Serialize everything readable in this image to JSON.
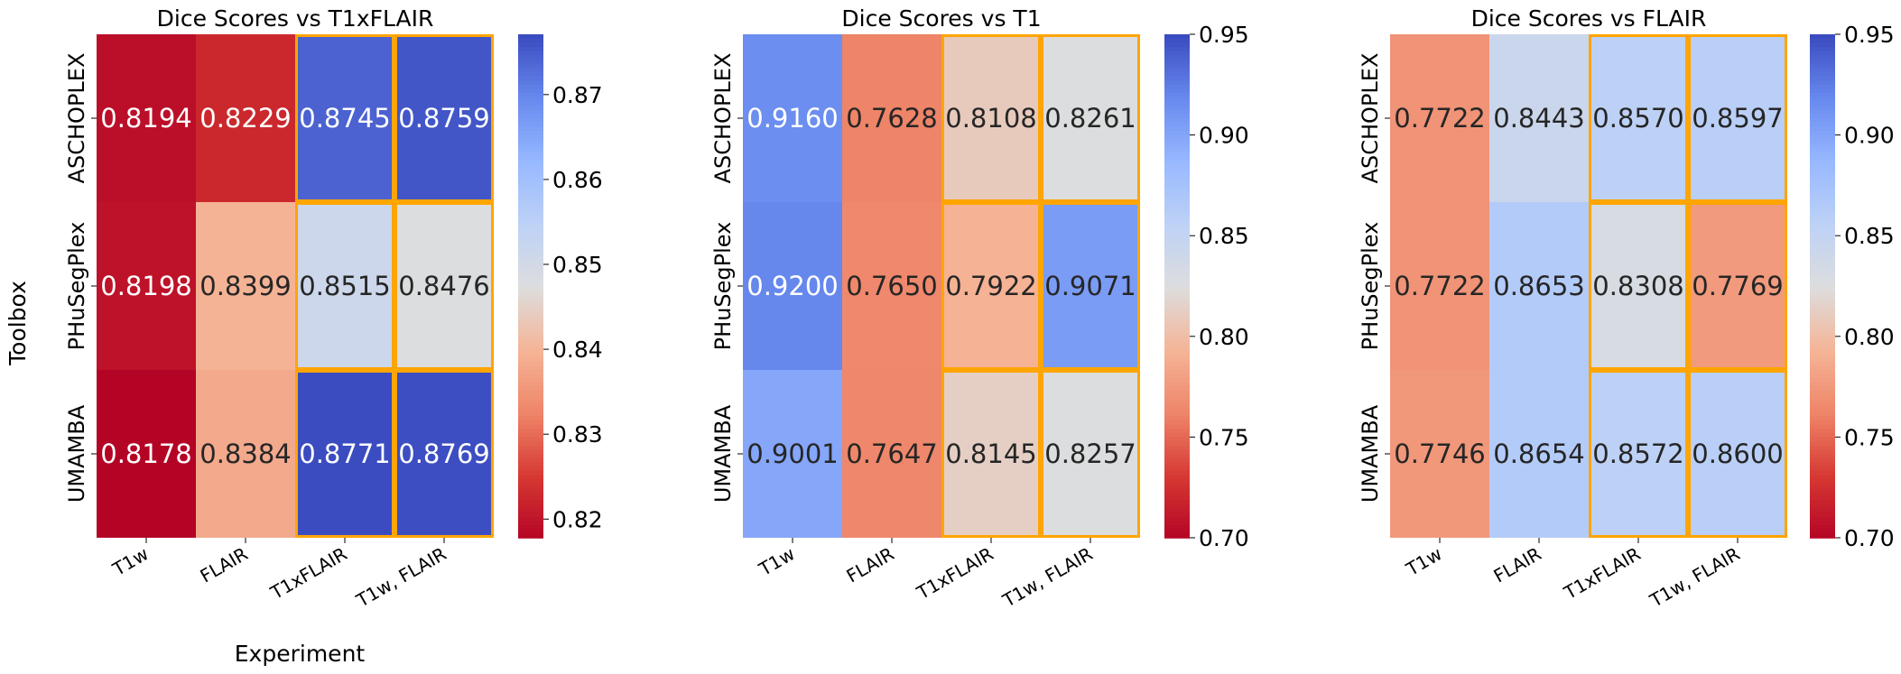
{
  "figure": {
    "ylabel": "Toolbox",
    "xlabel": "Experiment"
  },
  "chart_data": [
    {
      "type": "heatmap",
      "title": "Dice Scores vs T1xFLAIR",
      "x": [
        "T1w",
        "FLAIR",
        "T1xFLAIR",
        "T1w, FLAIR"
      ],
      "y": [
        "ASCHOPLEX",
        "PHuSegPlex",
        "UMAMBA"
      ],
      "values": [
        [
          0.8194,
          0.8229,
          0.8745,
          0.8759
        ],
        [
          0.8198,
          0.8399,
          0.8515,
          0.8476
        ],
        [
          0.8178,
          0.8384,
          0.8771,
          0.8769
        ]
      ],
      "labels": [
        [
          "0.8194",
          "0.8229",
          "0.8745",
          "0.8759"
        ],
        [
          "0.8198",
          "0.8399",
          "0.8515",
          "0.8476"
        ],
        [
          "0.8178",
          "0.8384",
          "0.8771",
          "0.8769"
        ]
      ],
      "colormap": "coolwarm_r",
      "vmin": 0.8178,
      "vmax": 0.8771,
      "colorbar_ticks": [
        0.82,
        0.83,
        0.84,
        0.85,
        0.86,
        0.87
      ],
      "colorbar_labels": [
        "0.82",
        "0.83",
        "0.84",
        "0.85",
        "0.86",
        "0.87"
      ],
      "highlight_columns": [
        "T1xFLAIR",
        "T1w, FLAIR"
      ],
      "highlight_color": "#ffa500"
    },
    {
      "type": "heatmap",
      "title": "Dice Scores vs T1",
      "x": [
        "T1w",
        "FLAIR",
        "T1xFLAIR",
        "T1w, FLAIR"
      ],
      "y": [
        "ASCHOPLEX",
        "PHuSegPlex",
        "UMAMBA"
      ],
      "values": [
        [
          0.916,
          0.7628,
          0.8108,
          0.8261
        ],
        [
          0.92,
          0.765,
          0.7922,
          0.9071
        ],
        [
          0.9001,
          0.7647,
          0.8145,
          0.8257
        ]
      ],
      "labels": [
        [
          "0.9160",
          "0.7628",
          "0.8108",
          "0.8261"
        ],
        [
          "0.9200",
          "0.7650",
          "0.7922",
          "0.9071"
        ],
        [
          "0.9001",
          "0.7647",
          "0.8145",
          "0.8257"
        ]
      ],
      "colormap": "coolwarm_r",
      "vmin": 0.7,
      "vmax": 0.95,
      "colorbar_ticks": [
        0.7,
        0.75,
        0.8,
        0.85,
        0.9,
        0.95
      ],
      "colorbar_labels": [
        "0.70",
        "0.75",
        "0.80",
        "0.85",
        "0.90",
        "0.95"
      ],
      "highlight_columns": [
        "T1xFLAIR",
        "T1w, FLAIR"
      ],
      "highlight_color": "#ffa500"
    },
    {
      "type": "heatmap",
      "title": "Dice Scores vs FLAIR",
      "x": [
        "T1w",
        "FLAIR",
        "T1xFLAIR",
        "T1w, FLAIR"
      ],
      "y": [
        "ASCHOPLEX",
        "PHuSegPlex",
        "UMAMBA"
      ],
      "values": [
        [
          0.7722,
          0.8443,
          0.857,
          0.8597
        ],
        [
          0.7722,
          0.8653,
          0.8308,
          0.7769
        ],
        [
          0.7746,
          0.8654,
          0.8572,
          0.86
        ]
      ],
      "labels": [
        [
          "0.7722",
          "0.8443",
          "0.8570",
          "0.8597"
        ],
        [
          "0.7722",
          "0.8653",
          "0.8308",
          "0.7769"
        ],
        [
          "0.7746",
          "0.8654",
          "0.8572",
          "0.8600"
        ]
      ],
      "colormap": "coolwarm_r",
      "vmin": 0.7,
      "vmax": 0.95,
      "colorbar_ticks": [
        0.7,
        0.75,
        0.8,
        0.85,
        0.9,
        0.95
      ],
      "colorbar_labels": [
        "0.70",
        "0.75",
        "0.80",
        "0.85",
        "0.90",
        "0.95"
      ],
      "highlight_columns": [
        "T1xFLAIR",
        "T1w, FLAIR"
      ],
      "highlight_color": "#ffa500"
    }
  ]
}
